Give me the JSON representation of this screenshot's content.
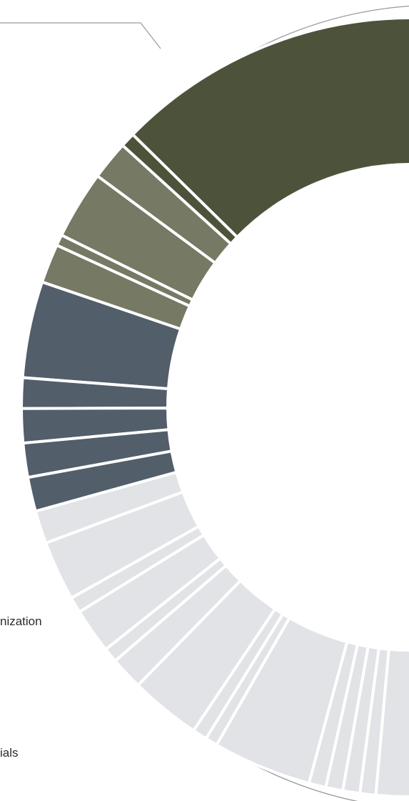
{
  "chart_data": {
    "type": "pie",
    "variant": "donut",
    "title": "",
    "colors": {
      "group_1": "#4c533a",
      "group_2": "#767963",
      "group_3": "#525e6a",
      "group_4": "#e1e3e6",
      "outer_ring": "#9a9a9a",
      "separator": "#ffffff"
    },
    "slices": [
      {
        "group": "group_1",
        "value": 25.0
      },
      {
        "group": "group_1",
        "value": 1.2
      },
      {
        "group": "group_2",
        "value": 3.2
      },
      {
        "group": "group_2",
        "value": 5.6
      },
      {
        "group": "group_2",
        "value": 0.9
      },
      {
        "group": "group_2",
        "value": 3.2
      },
      {
        "group": "group_3",
        "value": 7.9
      },
      {
        "group": "group_3",
        "value": 2.5
      },
      {
        "group": "group_3",
        "value": 2.8
      },
      {
        "group": "group_3",
        "value": 2.8
      },
      {
        "group": "group_3",
        "value": 2.8
      },
      {
        "group": "group_4",
        "value": 2.7
      },
      {
        "group": "group_4",
        "value": 4.9
      },
      {
        "group": "group_4",
        "value": 1.3
      },
      {
        "group": "group_4",
        "value": 3.7
      },
      {
        "group": "group_4",
        "value": 1.2
      },
      {
        "group": "group_4",
        "value": 2.7
      },
      {
        "group": "group_4",
        "value": 5.8
      },
      {
        "group": "group_4",
        "value": 1.2
      },
      {
        "group": "group_4",
        "value": 1.0
      },
      {
        "group": "group_4",
        "value": 8.1
      },
      {
        "group": "group_4",
        "value": 1.4
      },
      {
        "group": "group_4",
        "value": 1.4
      },
      {
        "group": "group_4",
        "value": 1.4
      },
      {
        "group": "group_4",
        "value": 1.3
      },
      {
        "group": "group_4",
        "value": 2.8
      }
    ],
    "labels": [
      {
        "text": "nization"
      },
      {
        "text": "ials"
      }
    ]
  }
}
